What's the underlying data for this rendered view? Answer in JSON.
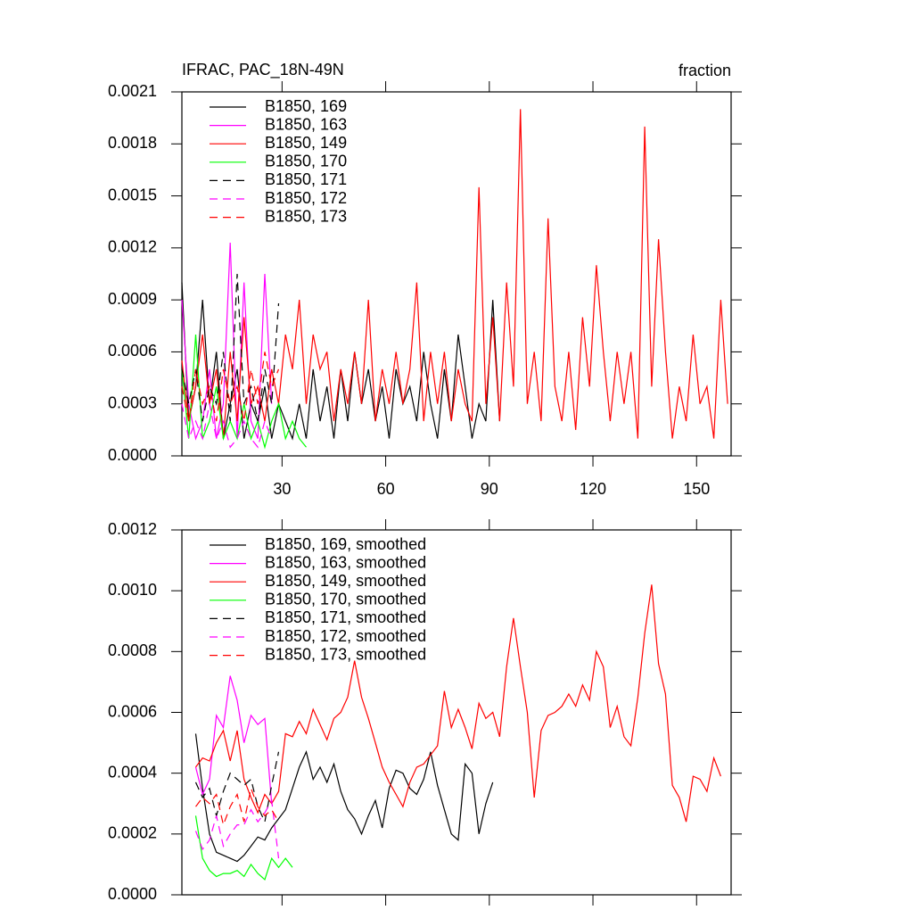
{
  "chart_data": [
    {
      "type": "line",
      "title": "IFRAC, PAC_18N-49N",
      "units_label": "fraction",
      "xlim": [
        1,
        160
      ],
      "xticks": [
        30,
        60,
        90,
        120,
        150
      ],
      "ylim": [
        0,
        0.0021
      ],
      "yticks": [
        {
          "value": 0,
          "label": "0.0000"
        },
        {
          "value": 0.0003,
          "label": "0.0003"
        },
        {
          "value": 0.0006,
          "label": "0.0006"
        },
        {
          "value": 0.0009,
          "label": "0.0009"
        },
        {
          "value": 0.0012,
          "label": "0.0012"
        },
        {
          "value": 0.0015,
          "label": "0.0015"
        },
        {
          "value": 0.0018,
          "label": "0.0018"
        },
        {
          "value": 0.0021,
          "label": "0.0021"
        }
      ],
      "legend": "upper-left",
      "series": [
        {
          "name": "B1850, 169",
          "color": "#000000",
          "dashed": false,
          "x": [
            1,
            3,
            5,
            7,
            9,
            11,
            13,
            15,
            17,
            19,
            21,
            23,
            25,
            27,
            29,
            31,
            33,
            35,
            37,
            39,
            41,
            43,
            45,
            47,
            49,
            51,
            53,
            55,
            57,
            59,
            61,
            63,
            65,
            67,
            69,
            71,
            73,
            75,
            77,
            79,
            81,
            83,
            85,
            87,
            89,
            91,
            93
          ],
          "values": [
            0.001,
            0.0002,
            0.0004,
            0.0009,
            0.0003,
            0.0006,
            0.0001,
            0.0003,
            0.0005,
            0.0001,
            0.0003,
            0.0002,
            0.0004,
            0.0001,
            0.0003,
            0.0002,
            0.0001,
            0.0003,
            0.0001,
            0.0005,
            0.0002,
            0.0004,
            0.0001,
            0.0005,
            0.0002,
            0.0006,
            0.0003,
            0.0005,
            0.0002,
            0.0004,
            0.0001,
            0.0005,
            0.0003,
            0.0004,
            0.0002,
            0.0006,
            0.0003,
            0.0001,
            0.0005,
            0.0002,
            0.0007,
            0.0004,
            0.0001,
            0.0003,
            0.0002,
            0.0009,
            0.0002
          ]
        },
        {
          "name": "B1850, 163",
          "color": "#ff00ff",
          "dashed": false,
          "x": [
            1,
            3,
            5,
            7,
            9,
            11,
            13,
            15,
            17,
            19,
            21,
            23,
            25,
            27
          ],
          "values": [
            0.0009,
            0.0003,
            0.0001,
            0.0002,
            0.0005,
            0.0001,
            0.0003,
            0.00123,
            0.0001,
            0.001,
            0.0002,
            0.0001,
            0.00105,
            0.0003
          ]
        },
        {
          "name": "B1850, 149",
          "color": "#ff0000",
          "dashed": false,
          "x": [
            1,
            3,
            5,
            7,
            9,
            11,
            13,
            15,
            17,
            19,
            21,
            23,
            25,
            27,
            29,
            31,
            33,
            35,
            37,
            39,
            41,
            43,
            45,
            47,
            49,
            51,
            53,
            55,
            57,
            59,
            61,
            63,
            65,
            67,
            69,
            71,
            73,
            75,
            77,
            79,
            81,
            83,
            85,
            87,
            89,
            91,
            93,
            95,
            97,
            99,
            101,
            103,
            105,
            107,
            109,
            111,
            113,
            115,
            117,
            119,
            121,
            123,
            125,
            127,
            129,
            131,
            133,
            135,
            137,
            139,
            141,
            143,
            145,
            147,
            149,
            151,
            153,
            155,
            157,
            159
          ],
          "values": [
            0.00055,
            0.0002,
            0.0004,
            0.0007,
            0.0003,
            0.0005,
            0.0001,
            0.0006,
            0.0002,
            0.0008,
            0.0003,
            0.0004,
            0.0002,
            0.0005,
            0.0003,
            0.0007,
            0.0005,
            0.0009,
            0.0003,
            0.0007,
            0.0005,
            0.0006,
            0.0002,
            0.0005,
            0.0003,
            0.0006,
            0.0003,
            0.0009,
            0.0002,
            0.0005,
            0.0003,
            0.0006,
            0.0003,
            0.0005,
            0.001,
            0.0002,
            0.0006,
            0.0003,
            0.0006,
            0.0002,
            0.0005,
            0.0003,
            0.0002,
            0.00155,
            0.0003,
            0.0008,
            0.0002,
            0.001,
            0.0004,
            0.002,
            0.0003,
            0.0006,
            0.0002,
            0.00137,
            0.0004,
            0.0002,
            0.0006,
            0.00015,
            0.0008,
            0.0004,
            0.0011,
            0.0006,
            0.0002,
            0.0006,
            0.0003,
            0.0006,
            0.0001,
            0.0019,
            0.0004,
            0.00125,
            0.0006,
            0.0001,
            0.0004,
            0.0002,
            0.0007,
            0.0003,
            0.0004,
            0.0001,
            0.0009,
            0.0003
          ]
        },
        {
          "name": "B1850, 170",
          "color": "#00ff00",
          "dashed": false,
          "x": [
            1,
            3,
            5,
            7,
            9,
            11,
            13,
            15,
            17,
            19,
            21,
            23,
            25,
            27,
            29,
            31,
            33,
            35,
            37
          ],
          "values": [
            0.0005,
            0.0001,
            0.0007,
            0.0001,
            0.0002,
            0.0004,
            0.0001,
            0.0002,
            0.0001,
            0.0003,
            0.0001,
            0.0002,
            5e-05,
            0.0002,
            0.0003,
            0.0001,
            0.0002,
            0.0001,
            5e-05
          ]
        },
        {
          "name": "B1850, 171",
          "color": "#000000",
          "dashed": true,
          "x": [
            1,
            3,
            5,
            7,
            9,
            11,
            13,
            15,
            17,
            19,
            21,
            23,
            25,
            27,
            29
          ],
          "values": [
            0.0005,
            0.0003,
            0.0005,
            0.0002,
            0.0004,
            0.0003,
            0.0006,
            0.0002,
            0.00105,
            0.0003,
            0.0004,
            0.0002,
            0.0005,
            0.0003,
            0.00088
          ]
        },
        {
          "name": "B1850, 172",
          "color": "#ff00ff",
          "dashed": true,
          "x": [
            1,
            3,
            5,
            7,
            9,
            11,
            13,
            15,
            17,
            19,
            21,
            23,
            25,
            27
          ],
          "values": [
            0.0003,
            0.0001,
            0.0002,
            0.0001,
            0.0003,
            0.0001,
            0.0002,
            5e-05,
            0.0001,
            0.0002,
            0.0001,
            5e-05,
            0.0002,
            0.0001
          ]
        },
        {
          "name": "B1850, 173",
          "color": "#ff0000",
          "dashed": true,
          "x": [
            1,
            3,
            5,
            7,
            9,
            11,
            13,
            15,
            17,
            19,
            21,
            23,
            25,
            27,
            29
          ],
          "values": [
            0.0004,
            0.0002,
            0.0005,
            0.0003,
            0.0004,
            0.0002,
            0.0005,
            0.0003,
            0.0004,
            0.0002,
            0.0005,
            0.0003,
            0.0006,
            0.0004,
            0.0005
          ]
        }
      ]
    },
    {
      "type": "line",
      "xlim": [
        1,
        160
      ],
      "xticks": [
        30,
        60,
        90,
        120,
        150
      ],
      "ylim": [
        0,
        0.0012
      ],
      "yticks": [
        {
          "value": 0,
          "label": "0.0000"
        },
        {
          "value": 0.0002,
          "label": "0.0002"
        },
        {
          "value": 0.0004,
          "label": "0.0004"
        },
        {
          "value": 0.0006,
          "label": "0.0006"
        },
        {
          "value": 0.0008,
          "label": "0.0008"
        },
        {
          "value": 0.001,
          "label": "0.0010"
        },
        {
          "value": 0.0012,
          "label": "0.0012"
        }
      ],
      "legend": "upper-left",
      "series": [
        {
          "name": "B1850, 169, smoothed",
          "color": "#000000",
          "dashed": false,
          "x": [
            5,
            7,
            9,
            11,
            13,
            15,
            17,
            19,
            21,
            23,
            25,
            27,
            29,
            31,
            33,
            35,
            37,
            39,
            41,
            43,
            45,
            47,
            49,
            51,
            53,
            55,
            57,
            59,
            61,
            63,
            65,
            67,
            69,
            71,
            73,
            75,
            77,
            79,
            81,
            83,
            85,
            87,
            89,
            91
          ],
          "values": [
            0.00053,
            0.00035,
            0.0002,
            0.00014,
            0.00013,
            0.00012,
            0.00011,
            0.00013,
            0.00016,
            0.00019,
            0.00018,
            0.00022,
            0.00025,
            0.00028,
            0.00035,
            0.00042,
            0.00047,
            0.00038,
            0.00042,
            0.00037,
            0.00043,
            0.00034,
            0.00028,
            0.00025,
            0.0002,
            0.00026,
            0.00031,
            0.00022,
            0.00035,
            0.00041,
            0.0004,
            0.00035,
            0.00033,
            0.00038,
            0.00047,
            0.00036,
            0.00028,
            0.0002,
            0.00018,
            0.00043,
            0.0004,
            0.0002,
            0.0003,
            0.00037
          ]
        },
        {
          "name": "B1850, 163, smoothed",
          "color": "#ff00ff",
          "dashed": false,
          "x": [
            5,
            7,
            9,
            11,
            13,
            15,
            17,
            19,
            21,
            23,
            25,
            27
          ],
          "values": [
            0.00042,
            0.00033,
            0.00038,
            0.00059,
            0.00055,
            0.00072,
            0.00064,
            0.0005,
            0.00059,
            0.00056,
            0.00058,
            0.0003
          ]
        },
        {
          "name": "B1850, 149, smoothed",
          "color": "#ff0000",
          "dashed": false,
          "x": [
            5,
            7,
            9,
            11,
            13,
            15,
            17,
            19,
            21,
            23,
            25,
            27,
            29,
            31,
            33,
            35,
            37,
            39,
            41,
            43,
            45,
            47,
            49,
            51,
            53,
            55,
            57,
            59,
            61,
            63,
            65,
            67,
            69,
            71,
            73,
            75,
            77,
            79,
            81,
            83,
            85,
            87,
            89,
            91,
            93,
            95,
            97,
            99,
            101,
            103,
            105,
            107,
            109,
            111,
            113,
            115,
            117,
            119,
            121,
            123,
            125,
            127,
            129,
            131,
            133,
            135,
            137,
            139,
            141,
            143,
            145,
            147,
            149,
            151,
            153,
            155,
            157
          ],
          "values": [
            0.00042,
            0.00045,
            0.00044,
            0.0005,
            0.00054,
            0.00044,
            0.00054,
            0.00038,
            0.00032,
            0.00027,
            0.00033,
            0.0003,
            0.00034,
            0.00053,
            0.00052,
            0.00057,
            0.00053,
            0.00061,
            0.00056,
            0.00051,
            0.00058,
            0.0006,
            0.00065,
            0.00077,
            0.00065,
            0.00058,
            0.0005,
            0.00042,
            0.00037,
            0.00033,
            0.00029,
            0.00037,
            0.00042,
            0.00043,
            0.00046,
            0.00049,
            0.00067,
            0.00055,
            0.00061,
            0.00055,
            0.00048,
            0.00063,
            0.00058,
            0.0006,
            0.00052,
            0.00075,
            0.00091,
            0.00075,
            0.0006,
            0.00032,
            0.00054,
            0.00059,
            0.0006,
            0.00062,
            0.00066,
            0.00062,
            0.00069,
            0.00064,
            0.0008,
            0.00075,
            0.00055,
            0.00062,
            0.00052,
            0.00049,
            0.00065,
            0.00086,
            0.00102,
            0.00076,
            0.00066,
            0.00036,
            0.00032,
            0.00024,
            0.00039,
            0.00038,
            0.00034,
            0.00045,
            0.00039
          ]
        },
        {
          "name": "B1850, 170, smoothed",
          "color": "#00ff00",
          "dashed": false,
          "x": [
            5,
            7,
            9,
            11,
            13,
            15,
            17,
            19,
            21,
            23,
            25,
            27,
            29,
            31,
            33
          ],
          "values": [
            0.00026,
            0.00012,
            8e-05,
            6e-05,
            7e-05,
            7e-05,
            8e-05,
            6e-05,
            0.0001,
            7e-05,
            5e-05,
            0.00012,
            9e-05,
            0.00012,
            9e-05
          ]
        },
        {
          "name": "B1850, 171, smoothed",
          "color": "#000000",
          "dashed": true,
          "x": [
            5,
            7,
            9,
            11,
            13,
            15,
            17,
            19,
            21,
            23,
            25,
            27,
            29
          ],
          "values": [
            0.00037,
            0.00032,
            0.00035,
            0.00026,
            0.00034,
            0.0004,
            0.00038,
            0.00036,
            0.00038,
            0.00029,
            0.00024,
            0.00036,
            0.00047
          ]
        },
        {
          "name": "B1850, 172, smoothed",
          "color": "#ff00ff",
          "dashed": true,
          "x": [
            5,
            7,
            9,
            11,
            13,
            15,
            17,
            19,
            21,
            23,
            25,
            27,
            29
          ],
          "values": [
            0.00021,
            0.00015,
            0.00018,
            0.00026,
            0.00016,
            0.0002,
            0.00023,
            0.00023,
            0.00028,
            0.00024,
            0.00027,
            0.00031,
            0.00012
          ]
        },
        {
          "name": "B1850, 173, smoothed",
          "color": "#ff0000",
          "dashed": true,
          "x": [
            5,
            7,
            9,
            11,
            13,
            15,
            17,
            19,
            21,
            23,
            25,
            27,
            29
          ],
          "values": [
            0.00029,
            0.00032,
            0.0003,
            0.00033,
            0.00023,
            0.00029,
            0.00033,
            0.00024,
            0.00035,
            0.00029,
            0.00026,
            0.00028,
            0.00024
          ]
        }
      ]
    }
  ]
}
